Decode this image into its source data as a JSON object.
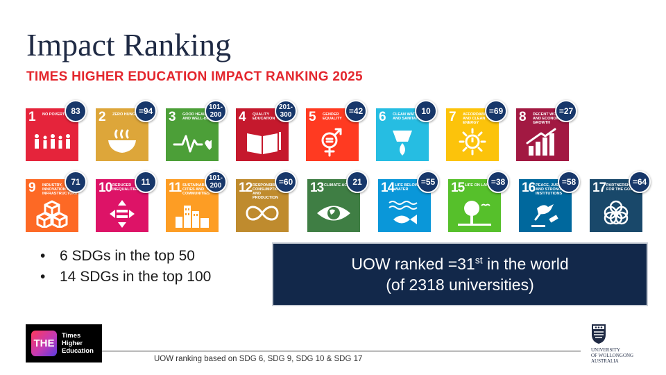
{
  "title": "Impact Ranking",
  "subtitle": "TIMES HIGHER EDUCATION IMPACT RANKING 2025",
  "sdgs": [
    {
      "num": "1",
      "label": "NO POVERTY",
      "rank": "83",
      "color": "#e5243b",
      "icon": "family-icon"
    },
    {
      "num": "2",
      "label": "ZERO HUNGER",
      "rank": "=94",
      "color": "#dda63a",
      "icon": "bowl-icon"
    },
    {
      "num": "3",
      "label": "GOOD HEALTH AND WELL-BEING",
      "rank": "101-200",
      "color": "#4c9f38",
      "icon": "heartbeat-icon"
    },
    {
      "num": "4",
      "label": "QUALITY EDUCATION",
      "rank": "201-300",
      "color": "#c5192d",
      "icon": "book-icon"
    },
    {
      "num": "5",
      "label": "GENDER EQUALITY",
      "rank": "=42",
      "color": "#ff3a21",
      "icon": "gender-icon"
    },
    {
      "num": "6",
      "label": "CLEAN WATER AND SANITATION",
      "rank": "10",
      "color": "#26bde2",
      "icon": "water-drop-icon"
    },
    {
      "num": "7",
      "label": "AFFORDABLE AND CLEAN ENERGY",
      "rank": "=69",
      "color": "#fcc30b",
      "icon": "sun-icon"
    },
    {
      "num": "8",
      "label": "DECENT WORK AND ECONOMIC GROWTH",
      "rank": "=27",
      "color": "#a21942",
      "icon": "growth-chart-icon"
    },
    {
      "num": "9",
      "label": "INDUSTRY, INNOVATION AND INFRASTRUCTURE",
      "rank": "71",
      "color": "#fd6925",
      "icon": "cubes-icon"
    },
    {
      "num": "10",
      "label": "REDUCED INEQUALITIES",
      "rank": "11",
      "color": "#dd1367",
      "icon": "equality-arrows-icon"
    },
    {
      "num": "11",
      "label": "SUSTAINABLE CITIES AND COMMUNITIES",
      "rank": "101-200",
      "color": "#fd9d24",
      "icon": "city-icon"
    },
    {
      "num": "12",
      "label": "RESPONSIBLE CONSUMPTION AND PRODUCTION",
      "rank": "=60",
      "color": "#bf8b2e",
      "icon": "infinity-icon"
    },
    {
      "num": "13",
      "label": "CLIMATE ACTION",
      "rank": "21",
      "color": "#3f7e44",
      "icon": "eye-globe-icon"
    },
    {
      "num": "14",
      "label": "LIFE BELOW WATER",
      "rank": "=55",
      "color": "#0a97d9",
      "icon": "fish-icon"
    },
    {
      "num": "15",
      "label": "LIFE ON LAND",
      "rank": "=38",
      "color": "#56c02b",
      "icon": "tree-icon"
    },
    {
      "num": "16",
      "label": "PEACE, JUSTICE AND STRONG INSTITUTIONS",
      "rank": "=58",
      "color": "#00689d",
      "icon": "dove-gavel-icon"
    },
    {
      "num": "17",
      "label": "PARTNERSHIPS FOR THE GOALS",
      "rank": "=64",
      "color": "#19486a",
      "icon": "rings-icon"
    }
  ],
  "bullets": [
    "6 SDGs in the top 50",
    "14 SDGs in the top 100"
  ],
  "highlight": {
    "line1_prefix": "UOW ranked =31",
    "line1_sup": "st",
    "line1_suffix": " in the world",
    "line2": "(of 2318 universities)"
  },
  "the_logo": {
    "mark": "THE",
    "line1": "Times",
    "line2": "Higher",
    "line3": "Education"
  },
  "footnote": "UOW ranking based on SDG 6, SDG 9, SDG 10 & SDG 17",
  "uow_logo": {
    "line1": "UNIVERSITY",
    "line2": "OF WOLLONGONG",
    "line3": "AUSTRALIA"
  }
}
